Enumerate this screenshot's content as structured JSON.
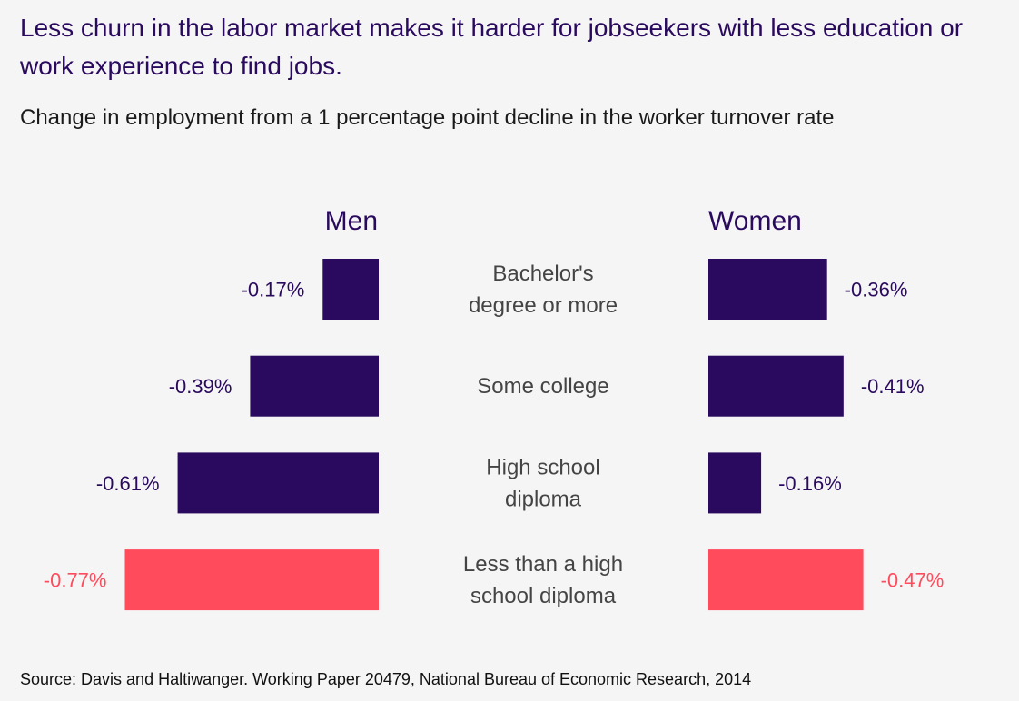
{
  "title": "Less churn in the labor market makes it harder for jobseekers with less education or work experience to find jobs.",
  "subtitle": "Change in employment from a 1 percentage point decline in the worker turnover rate",
  "source": "Source: Davis and Haltiwanger. Working Paper 20479, National Bureau of Economic Research, 2014",
  "colors": {
    "default": "#2a0a5e",
    "highlight": "#ff4b5c",
    "category_text": "#444444"
  },
  "chart_data": {
    "type": "bar",
    "orientation": "horizontal-butterfly",
    "unit": "%",
    "categories": [
      [
        "Bachelor's",
        "degree or more"
      ],
      [
        "Some college"
      ],
      [
        "High school",
        "diploma"
      ],
      [
        "Less than a high",
        "school diploma"
      ]
    ],
    "series": [
      {
        "name": "Men",
        "side": "left",
        "values": [
          -0.17,
          -0.39,
          -0.61,
          -0.77
        ],
        "labels": [
          "-0.17%",
          "-0.39%",
          "-0.61%",
          "-0.77%"
        ]
      },
      {
        "name": "Women",
        "side": "right",
        "values": [
          -0.36,
          -0.41,
          -0.16,
          -0.47
        ],
        "labels": [
          "-0.36%",
          "-0.41%",
          "-0.16%",
          "-0.47%"
        ]
      }
    ],
    "highlight_category_index": 3,
    "title": "Less churn in the labor market makes it harder for jobseekers with less education or work experience to find jobs.",
    "subtitle": "Change in employment from a 1 percentage point decline in the worker turnover rate",
    "xlabel": "",
    "ylabel": "",
    "grid": false
  }
}
